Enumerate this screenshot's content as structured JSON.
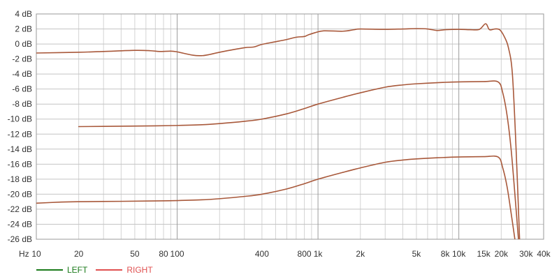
{
  "chart_data": {
    "type": "line",
    "xscale": "log",
    "xlim": [
      10,
      40000
    ],
    "ylim": [
      -26,
      4
    ],
    "ystep": 2,
    "grid": true,
    "xunit_label": "Hz",
    "x_ticks": [
      {
        "value": 10,
        "label": "10"
      },
      {
        "value": 20,
        "label": "20"
      },
      {
        "value": 50,
        "label": "50"
      },
      {
        "value": 80,
        "label": "80"
      },
      {
        "value": 100,
        "label": "100"
      },
      {
        "value": 400,
        "label": "400"
      },
      {
        "value": 800,
        "label": "800"
      },
      {
        "value": 1000,
        "label": "1k"
      },
      {
        "value": 2000,
        "label": "2k"
      },
      {
        "value": 5000,
        "label": "5k"
      },
      {
        "value": 8000,
        "label": "8k"
      },
      {
        "value": 10000,
        "label": "10k"
      },
      {
        "value": 15000,
        "label": "15k"
      },
      {
        "value": 20000,
        "label": "20k"
      },
      {
        "value": 30000,
        "label": "30k"
      },
      {
        "value": 40000,
        "label": "40k"
      }
    ],
    "y_ticks": [
      {
        "value": 4,
        "label": "4 dB"
      },
      {
        "value": 2,
        "label": "2 dB"
      },
      {
        "value": 0,
        "label": "0 dB"
      },
      {
        "value": -2,
        "label": "-2 dB"
      },
      {
        "value": -4,
        "label": "-4 dB"
      },
      {
        "value": -6,
        "label": "-6 dB"
      },
      {
        "value": -8,
        "label": "-8 dB"
      },
      {
        "value": -10,
        "label": "-10 dB"
      },
      {
        "value": -12,
        "label": "-12 dB"
      },
      {
        "value": -14,
        "label": "-14 dB"
      },
      {
        "value": -16,
        "label": "-16 dB"
      },
      {
        "value": -18,
        "label": "-18 dB"
      },
      {
        "value": -20,
        "label": "-20 dB"
      },
      {
        "value": -22,
        "label": "-22 dB"
      },
      {
        "value": -24,
        "label": "-24 dB"
      },
      {
        "value": -26,
        "label": "-26 dB"
      }
    ],
    "legend": [
      {
        "name": "LEFT",
        "color": "#1a7a1a"
      },
      {
        "name": "RIGHT",
        "color": "#e05050"
      }
    ],
    "series_color": "#a8583a",
    "series": [
      {
        "points": [
          [
            10,
            -1.2
          ],
          [
            20,
            -1.1
          ],
          [
            30,
            -1.0
          ],
          [
            50,
            -0.85
          ],
          [
            65,
            -0.9
          ],
          [
            75,
            -1.0
          ],
          [
            90,
            -0.95
          ],
          [
            100,
            -1.05
          ],
          [
            130,
            -1.5
          ],
          [
            150,
            -1.55
          ],
          [
            170,
            -1.4
          ],
          [
            200,
            -1.1
          ],
          [
            300,
            -0.5
          ],
          [
            350,
            -0.4
          ],
          [
            400,
            -0.05
          ],
          [
            500,
            0.3
          ],
          [
            600,
            0.6
          ],
          [
            700,
            0.9
          ],
          [
            800,
            1.0
          ],
          [
            850,
            1.2
          ],
          [
            950,
            1.5
          ],
          [
            1100,
            1.75
          ],
          [
            1500,
            1.7
          ],
          [
            1800,
            1.9
          ],
          [
            2000,
            2.0
          ],
          [
            3000,
            1.95
          ],
          [
            4000,
            2.0
          ],
          [
            5000,
            2.05
          ],
          [
            6000,
            2.0
          ],
          [
            7000,
            1.8
          ],
          [
            8000,
            1.9
          ],
          [
            10000,
            1.95
          ],
          [
            12000,
            1.9
          ],
          [
            14000,
            1.95
          ],
          [
            15500,
            2.7
          ],
          [
            16500,
            1.9
          ],
          [
            18000,
            2.0
          ],
          [
            19500,
            1.9
          ],
          [
            21000,
            1.0
          ],
          [
            22500,
            -0.5
          ],
          [
            24000,
            -4.0
          ],
          [
            25500,
            -14.0
          ],
          [
            27000,
            -26.0
          ]
        ]
      },
      {
        "points": [
          [
            20,
            -11.0
          ],
          [
            40,
            -10.95
          ],
          [
            70,
            -10.9
          ],
          [
            100,
            -10.85
          ],
          [
            150,
            -10.75
          ],
          [
            200,
            -10.6
          ],
          [
            300,
            -10.3
          ],
          [
            400,
            -10.0
          ],
          [
            600,
            -9.3
          ],
          [
            800,
            -8.6
          ],
          [
            1000,
            -8.0
          ],
          [
            1500,
            -7.1
          ],
          [
            2000,
            -6.5
          ],
          [
            3000,
            -5.75
          ],
          [
            4000,
            -5.45
          ],
          [
            5000,
            -5.3
          ],
          [
            7000,
            -5.15
          ],
          [
            10000,
            -5.05
          ],
          [
            15000,
            -5.0
          ],
          [
            19000,
            -5.05
          ],
          [
            20500,
            -6.5
          ],
          [
            22000,
            -9.5
          ],
          [
            23500,
            -14.0
          ],
          [
            25000,
            -20.0
          ],
          [
            26500,
            -26.0
          ]
        ]
      },
      {
        "points": [
          [
            10,
            -21.2
          ],
          [
            15,
            -21.05
          ],
          [
            20,
            -21.0
          ],
          [
            40,
            -20.95
          ],
          [
            70,
            -20.9
          ],
          [
            100,
            -20.85
          ],
          [
            150,
            -20.75
          ],
          [
            200,
            -20.6
          ],
          [
            300,
            -20.3
          ],
          [
            400,
            -20.0
          ],
          [
            600,
            -19.3
          ],
          [
            800,
            -18.6
          ],
          [
            1000,
            -18.0
          ],
          [
            1500,
            -17.1
          ],
          [
            2000,
            -16.5
          ],
          [
            3000,
            -15.75
          ],
          [
            4000,
            -15.45
          ],
          [
            5000,
            -15.3
          ],
          [
            7000,
            -15.15
          ],
          [
            10000,
            -15.05
          ],
          [
            15000,
            -15.0
          ],
          [
            19000,
            -15.05
          ],
          [
            20500,
            -16.5
          ],
          [
            22000,
            -19.0
          ],
          [
            23500,
            -22.5
          ],
          [
            25000,
            -26.0
          ]
        ]
      }
    ]
  }
}
